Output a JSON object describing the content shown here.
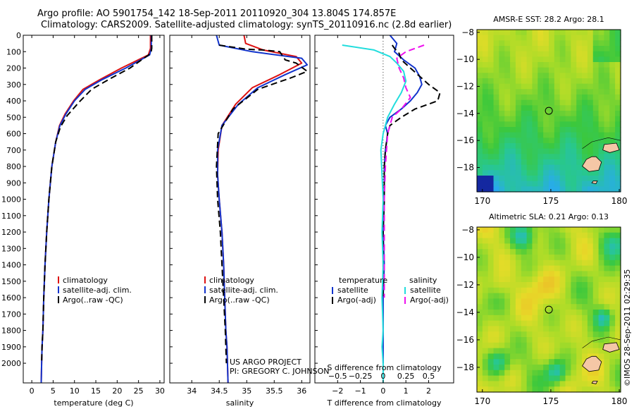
{
  "header": {
    "line1": "Argo profile: AO 5901754_142 18-Sep-2011 20110920_304 13.804S 174.857E",
    "line2": "Climatology: CARS2009. Satellite-adjusted climatology: synTS_20110916.nc (2.8d earlier)"
  },
  "credit": {
    "line1": "US ARGO PROJECT",
    "line2": "PI: GREGORY C. JOHNSON"
  },
  "stamp": "©IMOS 28-Sep-2011 02:29:35",
  "colors": {
    "climatology": "#dd1111",
    "satellite": "#1133cc",
    "argo": "#000000",
    "satellite_s": "#22dddd",
    "argo_s": "#ee11ee"
  },
  "chart_data": [
    {
      "id": "temperature",
      "type": "line",
      "xlabel": "temperature (deg C)",
      "ylabel": "",
      "xlim": [
        -2,
        31
      ],
      "ylim": [
        2120,
        0
      ],
      "xticks": [
        0,
        5,
        10,
        15,
        20,
        25,
        30
      ],
      "xtick_labels": [
        "0",
        "5",
        "10",
        "15",
        "20",
        "25",
        "30"
      ],
      "yticks": [
        0,
        100,
        200,
        300,
        400,
        500,
        600,
        700,
        800,
        900,
        1000,
        1100,
        1200,
        1300,
        1400,
        1500,
        1600,
        1700,
        1800,
        1900,
        2000
      ],
      "ytick_labels": [
        "0",
        "100",
        "200",
        "300",
        "400",
        "500",
        "600",
        "700",
        "800",
        "900",
        "1000",
        "1100",
        "1200",
        "1300",
        "1400",
        "1500",
        "1600",
        "1700",
        "1800",
        "1900",
        "2000"
      ],
      "legend": [
        "climatology",
        "satellite-adj. clim.",
        "Argo(..raw -QC)"
      ],
      "series": [
        {
          "name": "climatology",
          "role": "climatology",
          "x": [
            27.8,
            27.8,
            27.3,
            21,
            16,
            12,
            9.8,
            7.8,
            6.5,
            5.6,
            4.7,
            4.0,
            3.5,
            3.1,
            2.8,
            2.6,
            2.4,
            2.3,
            2.25,
            2.2
          ],
          "y": [
            0,
            80,
            120,
            200,
            270,
            330,
            400,
            480,
            550,
            650,
            800,
            1000,
            1200,
            1400,
            1600,
            1800,
            1900,
            2000,
            2060,
            2120
          ]
        },
        {
          "name": "satellite-adj. clim.",
          "role": "satellite",
          "x": [
            28.0,
            28.0,
            27.6,
            22,
            16.5,
            12.5,
            10,
            8,
            6.6,
            5.6,
            4.7,
            4.0,
            3.5,
            3.1,
            2.8,
            2.6,
            2.4,
            2.3,
            2.25,
            2.2
          ],
          "y": [
            0,
            80,
            120,
            200,
            270,
            330,
            400,
            480,
            550,
            650,
            800,
            1000,
            1200,
            1400,
            1600,
            1800,
            1900,
            2000,
            2060,
            2120
          ]
        },
        {
          "name": "Argo(..raw -QC)",
          "role": "argo",
          "x": [
            28.1,
            28.1,
            27.9,
            23,
            18,
            14,
            11,
            8.3,
            6.7,
            5.6,
            4.7,
            4.0,
            3.5,
            3.1,
            2.8,
            2.6,
            2.4,
            2.3
          ],
          "y": [
            0,
            80,
            110,
            200,
            270,
            330,
            410,
            490,
            560,
            650,
            800,
            1000,
            1200,
            1400,
            1600,
            1800,
            1900,
            2000
          ]
        }
      ]
    },
    {
      "id": "salinity",
      "type": "line",
      "xlabel": "salinity",
      "ylabel": "",
      "xlim": [
        33.6,
        36.15
      ],
      "ylim": [
        2120,
        0
      ],
      "xticks": [
        34,
        34.5,
        35,
        35.5,
        36
      ],
      "xtick_labels": [
        "34",
        "34.5",
        "35",
        "35.5",
        "36"
      ],
      "legend": [
        "climatology",
        "satellite-adj. clim.",
        "Argo(..raw -QC)"
      ],
      "series": [
        {
          "name": "climatology",
          "role": "climatology",
          "x": [
            34.95,
            34.98,
            35.3,
            35.9,
            36.0,
            35.6,
            35.1,
            34.8,
            34.55,
            34.48,
            34.47,
            34.5,
            34.55,
            34.58,
            34.6,
            34.62,
            34.64,
            34.65,
            34.66
          ],
          "y": [
            0,
            50,
            90,
            130,
            170,
            240,
            320,
            420,
            550,
            700,
            850,
            1000,
            1200,
            1400,
            1600,
            1800,
            1900,
            2000,
            2120
          ]
        },
        {
          "name": "satellite-adj. clim.",
          "role": "satellite",
          "x": [
            34.45,
            34.5,
            35.1,
            36.0,
            36.1,
            35.7,
            35.2,
            34.85,
            34.55,
            34.47,
            34.47,
            34.5,
            34.55,
            34.58,
            34.6,
            34.62,
            34.64,
            34.65,
            34.66
          ],
          "y": [
            0,
            60,
            100,
            140,
            180,
            240,
            320,
            420,
            550,
            700,
            850,
            1000,
            1200,
            1400,
            1600,
            1800,
            1900,
            2000,
            2120
          ]
        },
        {
          "name": "Argo(..raw -QC)",
          "role": "argo",
          "x": [
            34.5,
            35.0,
            35.3,
            35.6,
            35.7,
            35.9,
            36.1,
            35.8,
            35.2,
            34.75,
            34.48,
            34.45,
            34.47,
            34.52,
            34.55,
            34.58,
            34.61,
            34.63
          ],
          "y": [
            60,
            85,
            90,
            100,
            150,
            170,
            220,
            260,
            330,
            450,
            600,
            800,
            1000,
            1200,
            1400,
            1600,
            1800,
            2000
          ]
        }
      ]
    },
    {
      "id": "difference",
      "type": "line",
      "xlabel": "T difference from climatology",
      "xlabel2": "S difference from climatology",
      "xlim": [
        -3,
        3.1
      ],
      "ylim": [
        2120,
        0
      ],
      "xticks": [
        -2,
        -1,
        0,
        1,
        2
      ],
      "xtick_labels": [
        "−2",
        "−1",
        "0",
        "1",
        "2"
      ],
      "s_tick_values": [
        -0.5,
        -0.25,
        0,
        0.25,
        0.5
      ],
      "s_tick_labels": [
        "−0.5",
        "−0.25",
        "0",
        "0.25",
        "0.5"
      ],
      "legend_titles": [
        "temperature",
        "salinity"
      ],
      "legend": [
        "satellite",
        "Argo(-adj)",
        "satellite",
        "Argo(-adj)"
      ],
      "series": [
        {
          "name": "satellite",
          "group": "temperature",
          "role": "satellite",
          "x": [
            0.3,
            0.6,
            0.5,
            0.9,
            1.4,
            1.6,
            1.7,
            1.5,
            1.2,
            0.8,
            0.3,
            0.1,
            0.2,
            0.1,
            0.05,
            0.05,
            0.0,
            0.05,
            0.0,
            0.0,
            0.0
          ],
          "y": [
            0,
            50,
            100,
            150,
            200,
            250,
            300,
            350,
            400,
            450,
            500,
            550,
            600,
            700,
            800,
            1000,
            1200,
            1400,
            1600,
            1800,
            2000
          ]
        },
        {
          "name": "Argo(-adj)",
          "group": "temperature",
          "role": "argo",
          "x": [
            0.4,
            0.5,
            0.7,
            0.8,
            1.2,
            1.6,
            2.0,
            2.5,
            2.4,
            1.4,
            0.8,
            0.3,
            0.2,
            0.1,
            0.05,
            0.05,
            0.0,
            0.0,
            0.0
          ],
          "y": [
            60,
            80,
            110,
            150,
            200,
            250,
            300,
            350,
            400,
            450,
            500,
            550,
            600,
            700,
            800,
            1000,
            1200,
            1400,
            1600
          ]
        },
        {
          "name": "satellite",
          "group": "salinity",
          "role": "satellite_s",
          "x": [
            -1.8,
            -0.4,
            0.3,
            0.6,
            0.9,
            1.0,
            0.8,
            0.5,
            0.2,
            0.0,
            -0.1,
            -0.05,
            0.0,
            -0.05,
            0.0,
            -0.05,
            0.0,
            -0.05,
            0.0,
            0.0
          ],
          "y": [
            60,
            90,
            130,
            170,
            220,
            280,
            350,
            420,
            500,
            600,
            700,
            850,
            1000,
            1200,
            1400,
            1600,
            1800,
            1900,
            2000,
            2120
          ]
        },
        {
          "name": "Argo(-adj)",
          "group": "salinity",
          "role": "argo_s",
          "x": [
            1.8,
            1.0,
            0.6,
            0.7,
            0.9,
            1.0,
            1.2,
            0.8,
            0.4,
            0.2,
            0.1,
            0.05,
            0.05,
            0.05,
            0.05
          ],
          "y": [
            60,
            100,
            140,
            200,
            260,
            320,
            380,
            450,
            500,
            600,
            800,
            1000,
            1200,
            1400,
            1600
          ]
        }
      ]
    },
    {
      "id": "sst_map",
      "type": "heatmap",
      "title": "AMSR-E SST: 28.2 Argo: 28.1",
      "xlim": [
        169.6,
        180.1
      ],
      "ylim": [
        -19.8,
        -7.8
      ],
      "xticks": [
        170,
        175,
        180
      ],
      "xtick_labels": [
        "170",
        "175",
        "180"
      ],
      "yticks": [
        -8,
        -10,
        -12,
        -14,
        -16,
        -18
      ],
      "ytick_labels": [
        "−8",
        "−10",
        "−12",
        "−14",
        "−16",
        "−18"
      ],
      "marker": {
        "lon": 174.857,
        "lat": -13.804
      }
    },
    {
      "id": "sla_map",
      "type": "heatmap",
      "title": "Altimetric SLA: 0.21 Argo: 0.13",
      "xlim": [
        169.6,
        180.1
      ],
      "ylim": [
        -19.8,
        -7.8
      ],
      "xticks": [
        170,
        175,
        180
      ],
      "xtick_labels": [
        "170",
        "175",
        "180"
      ],
      "yticks": [
        -8,
        -10,
        -12,
        -14,
        -16,
        -18
      ],
      "ytick_labels": [
        "−8",
        "−10",
        "−12",
        "−14",
        "−16",
        "−18"
      ],
      "marker": {
        "lon": 174.857,
        "lat": -13.804
      }
    }
  ]
}
